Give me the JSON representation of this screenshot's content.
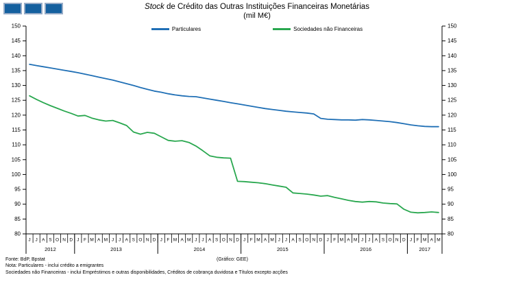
{
  "title": {
    "italic": "Stock",
    "rest": " de Crédito das Outras Instituições Financeiras Monetárias",
    "subtitle": "(mil M€)"
  },
  "chart_data": {
    "type": "line",
    "title": "Stock de Crédito das Outras Instituições Financeiras Monetárias (mil M€)",
    "xlabel": "",
    "ylabel": "",
    "ylim": [
      80,
      150
    ],
    "ytick_step": 5,
    "grid": false,
    "legend_position": "top-center",
    "x_groups": [
      {
        "year": "2012",
        "months": [
          "J",
          "J",
          "A",
          "S",
          "O",
          "N",
          "D"
        ]
      },
      {
        "year": "2013",
        "months": [
          "J",
          "F",
          "M",
          "A",
          "M",
          "J",
          "J",
          "A",
          "S",
          "O",
          "N",
          "D"
        ]
      },
      {
        "year": "2014",
        "months": [
          "J",
          "F",
          "M",
          "A",
          "M",
          "J",
          "J",
          "A",
          "S",
          "O",
          "N",
          "D"
        ]
      },
      {
        "year": "2015",
        "months": [
          "J",
          "F",
          "M",
          "A",
          "M",
          "J",
          "J",
          "A",
          "S",
          "O",
          "N",
          "D"
        ]
      },
      {
        "year": "2016",
        "months": [
          "J",
          "F",
          "M",
          "A",
          "M",
          "J",
          "J",
          "A",
          "S",
          "O",
          "N",
          "D"
        ]
      },
      {
        "year": "2017",
        "months": [
          "J",
          "F",
          "M",
          "A",
          "M"
        ]
      }
    ],
    "series": [
      {
        "name": "Particulares",
        "color": "#1F6FB5",
        "values": [
          137.1,
          136.7,
          136.3,
          135.9,
          135.5,
          135.1,
          134.7,
          134.3,
          133.8,
          133.3,
          132.8,
          132.3,
          131.8,
          131.2,
          130.6,
          130.0,
          129.3,
          128.7,
          128.1,
          127.7,
          127.2,
          126.8,
          126.5,
          126.3,
          126.2,
          125.8,
          125.4,
          125.0,
          124.6,
          124.2,
          123.8,
          123.4,
          123.0,
          122.6,
          122.2,
          121.9,
          121.6,
          121.3,
          121.1,
          120.9,
          120.7,
          120.4,
          118.9,
          118.6,
          118.5,
          118.4,
          118.4,
          118.3,
          118.5,
          118.4,
          118.2,
          118.0,
          117.8,
          117.5,
          117.1,
          116.7,
          116.4,
          116.2,
          116.1,
          116.1
        ]
      },
      {
        "name": "Sociedades não Financeiras",
        "color": "#28A74E",
        "values": [
          126.5,
          125.3,
          124.2,
          123.2,
          122.3,
          121.4,
          120.6,
          119.7,
          119.9,
          119.0,
          118.4,
          118.0,
          118.2,
          117.4,
          116.5,
          114.3,
          113.6,
          114.2,
          113.9,
          112.7,
          111.5,
          111.2,
          111.4,
          110.8,
          109.6,
          108.0,
          106.3,
          105.8,
          105.6,
          105.5,
          97.7,
          97.6,
          97.4,
          97.2,
          96.9,
          96.5,
          96.1,
          95.7,
          93.8,
          93.6,
          93.4,
          93.1,
          92.7,
          92.9,
          92.3,
          91.8,
          91.3,
          90.9,
          90.7,
          90.9,
          90.8,
          90.4,
          90.2,
          90.1,
          88.3,
          87.3,
          87.1,
          87.2,
          87.4,
          87.2
        ]
      }
    ]
  },
  "footer": {
    "fonte": "Fonte: BdP, Bpstat",
    "grafico": "(Gráfico: GEE)",
    "nota1": "Nota: Particulares - inclui crédito a emigrantes",
    "nota2": "Sociedades não Financeiras - inclui Empréstimos e outras disponibilidades, Créditos de cobrança duvidosa e Títulos excepto acções"
  },
  "colors": {
    "axis": "#000000",
    "logo_fill": "#14609F",
    "logo_border": "#96ABC7"
  }
}
